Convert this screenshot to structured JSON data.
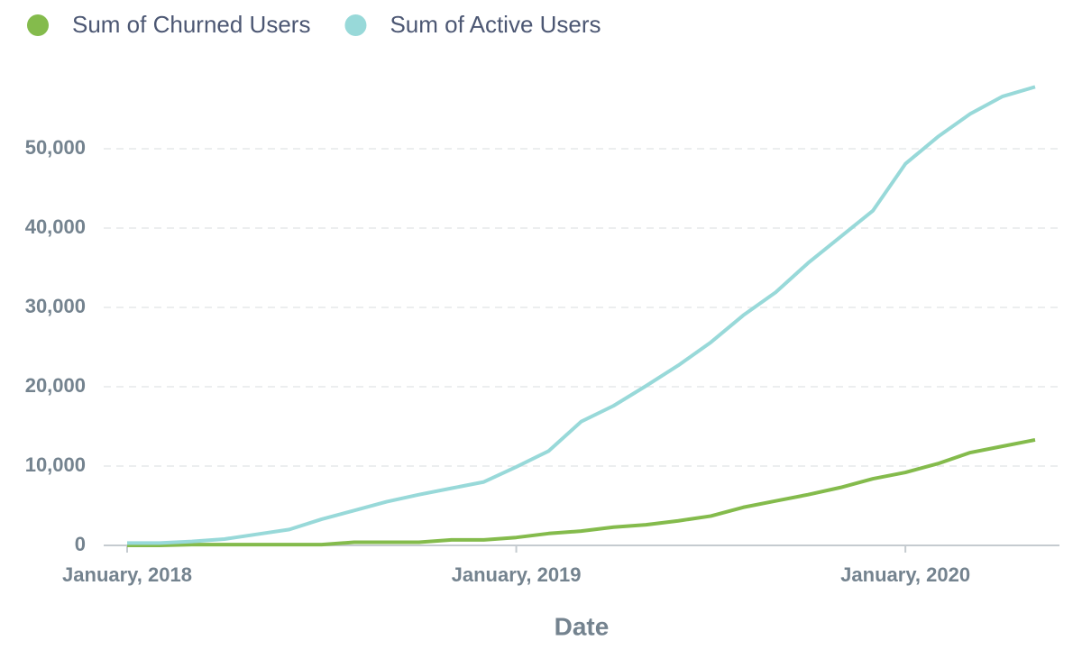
{
  "chart_data": {
    "type": "line",
    "x_label": "Date",
    "categories": [
      "January, 2018",
      null,
      null,
      null,
      null,
      null,
      null,
      null,
      null,
      null,
      null,
      null,
      "January, 2019",
      null,
      null,
      null,
      null,
      null,
      null,
      null,
      null,
      null,
      null,
      null,
      "January, 2020",
      null,
      null,
      null,
      null
    ],
    "series": [
      {
        "name": "Sum of Churned Users",
        "color": "#84bb4c",
        "values": [
          0,
          0,
          100,
          100,
          100,
          100,
          100,
          400,
          400,
          400,
          700,
          700,
          1000,
          1500,
          1800,
          2300,
          2600,
          3100,
          3700,
          4800,
          5600,
          6400,
          7300,
          8400,
          9200,
          10300,
          11700,
          12500,
          13300
        ]
      },
      {
        "name": "Sum of Active Users",
        "color": "#98d9d9",
        "values": [
          300,
          300,
          500,
          800,
          1400,
          2000,
          3300,
          4400,
          5500,
          6400,
          7200,
          8000,
          9900,
          11900,
          15600,
          17600,
          20100,
          22700,
          25600,
          29000,
          31900,
          35600,
          38900,
          42200,
          48100,
          51500,
          54400,
          56600,
          57800
        ]
      }
    ],
    "ylim": [
      0,
      60000
    ],
    "yticks": [
      0,
      {
        "value": 10000,
        "label": "10,000"
      },
      {
        "value": 20000,
        "label": "20,000"
      },
      {
        "value": 30000,
        "label": "30,000"
      },
      {
        "value": 40000,
        "label": "40,000"
      },
      {
        "value": 50000,
        "label": "50,000"
      }
    ],
    "grid": true,
    "legend": "top-left"
  }
}
